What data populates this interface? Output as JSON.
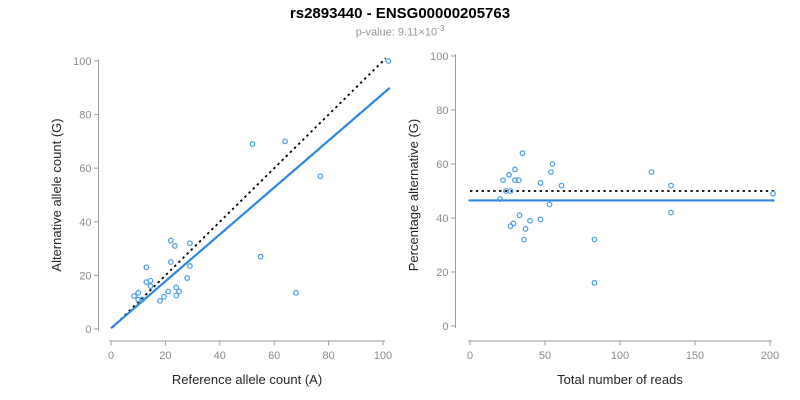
{
  "header": {
    "title": "rs2893440 - ENSG00000205763",
    "subtitle_base": "p-value: 9.11×10",
    "subtitle_exponent": "-3"
  },
  "colors": {
    "point": "#4A9BE8",
    "fit_line": "#2E86DE",
    "reference_line": "#000000",
    "axis": "#9E9E9E",
    "tick_label": "#8C8C8C",
    "axis_title": "#262626",
    "subtitle": "#969696",
    "background": "#FFFFFF"
  },
  "chart_data": [
    {
      "type": "scatter",
      "panel": "left",
      "xlabel": "Reference allele count (A)",
      "ylabel": "Alternative allele count (G)",
      "xlim": [
        0,
        100
      ],
      "ylim": [
        0,
        100
      ],
      "xticks": [
        0,
        20,
        40,
        60,
        80,
        100
      ],
      "yticks": [
        0,
        20,
        40,
        60,
        80,
        100
      ],
      "grid": false,
      "legend": "none",
      "points": [
        [
          102,
          100
        ],
        [
          52,
          69
        ],
        [
          64,
          70
        ],
        [
          77,
          57
        ],
        [
          55,
          27
        ],
        [
          68,
          13.5
        ],
        [
          22,
          33
        ],
        [
          23.5,
          31
        ],
        [
          29,
          32
        ],
        [
          13,
          23
        ],
        [
          22,
          25
        ],
        [
          29,
          23.5
        ],
        [
          28,
          19
        ],
        [
          13,
          17.5
        ],
        [
          14.5,
          18
        ],
        [
          14.5,
          16
        ],
        [
          10,
          13.5
        ],
        [
          8.5,
          12.3
        ],
        [
          10,
          11
        ],
        [
          11.5,
          11
        ],
        [
          18,
          10.5
        ],
        [
          19.5,
          12
        ],
        [
          21,
          14
        ],
        [
          24,
          15.5
        ],
        [
          25,
          14
        ],
        [
          24,
          12.5
        ]
      ],
      "lines": [
        {
          "name": "regression-fit",
          "style": "solid",
          "points": [
            [
              0,
              0.3
            ],
            [
              102.5,
              90
            ]
          ]
        },
        {
          "name": "identity-reference",
          "style": "dotted",
          "points": [
            [
              0.5,
              0.5
            ],
            [
              101,
              101
            ]
          ]
        }
      ]
    },
    {
      "type": "scatter",
      "panel": "right",
      "xlabel": "Total number of reads",
      "ylabel": "Percentage alternative (G)",
      "xlim": [
        0,
        200
      ],
      "ylim": [
        0,
        100
      ],
      "xticks": [
        0,
        50,
        100,
        150,
        200
      ],
      "yticks": [
        0,
        20,
        40,
        60,
        80,
        100
      ],
      "grid": false,
      "legend": "none",
      "points": [
        [
          35,
          64
        ],
        [
          55,
          60
        ],
        [
          30,
          58
        ],
        [
          54,
          57
        ],
        [
          26,
          56
        ],
        [
          22,
          54
        ],
        [
          30,
          54
        ],
        [
          32.5,
          54
        ],
        [
          47,
          53
        ],
        [
          61,
          52
        ],
        [
          121,
          57
        ],
        [
          134,
          52
        ],
        [
          202,
          49
        ],
        [
          24,
          50
        ],
        [
          27,
          50
        ],
        [
          20,
          47
        ],
        [
          53,
          45
        ],
        [
          134,
          42
        ],
        [
          33,
          41
        ],
        [
          40,
          39
        ],
        [
          47,
          39.5
        ],
        [
          29,
          38
        ],
        [
          27,
          37
        ],
        [
          37,
          36
        ],
        [
          36,
          32
        ],
        [
          83,
          32
        ],
        [
          83,
          16
        ]
      ],
      "lines": [
        {
          "name": "fit-mean",
          "style": "solid",
          "points": [
            [
              -1,
              46.5
            ],
            [
              203,
              46.5
            ]
          ]
        },
        {
          "name": "reference-50pct",
          "style": "dotted",
          "points": [
            [
              0,
              50
            ],
            [
              204,
              50
            ]
          ]
        }
      ]
    }
  ]
}
